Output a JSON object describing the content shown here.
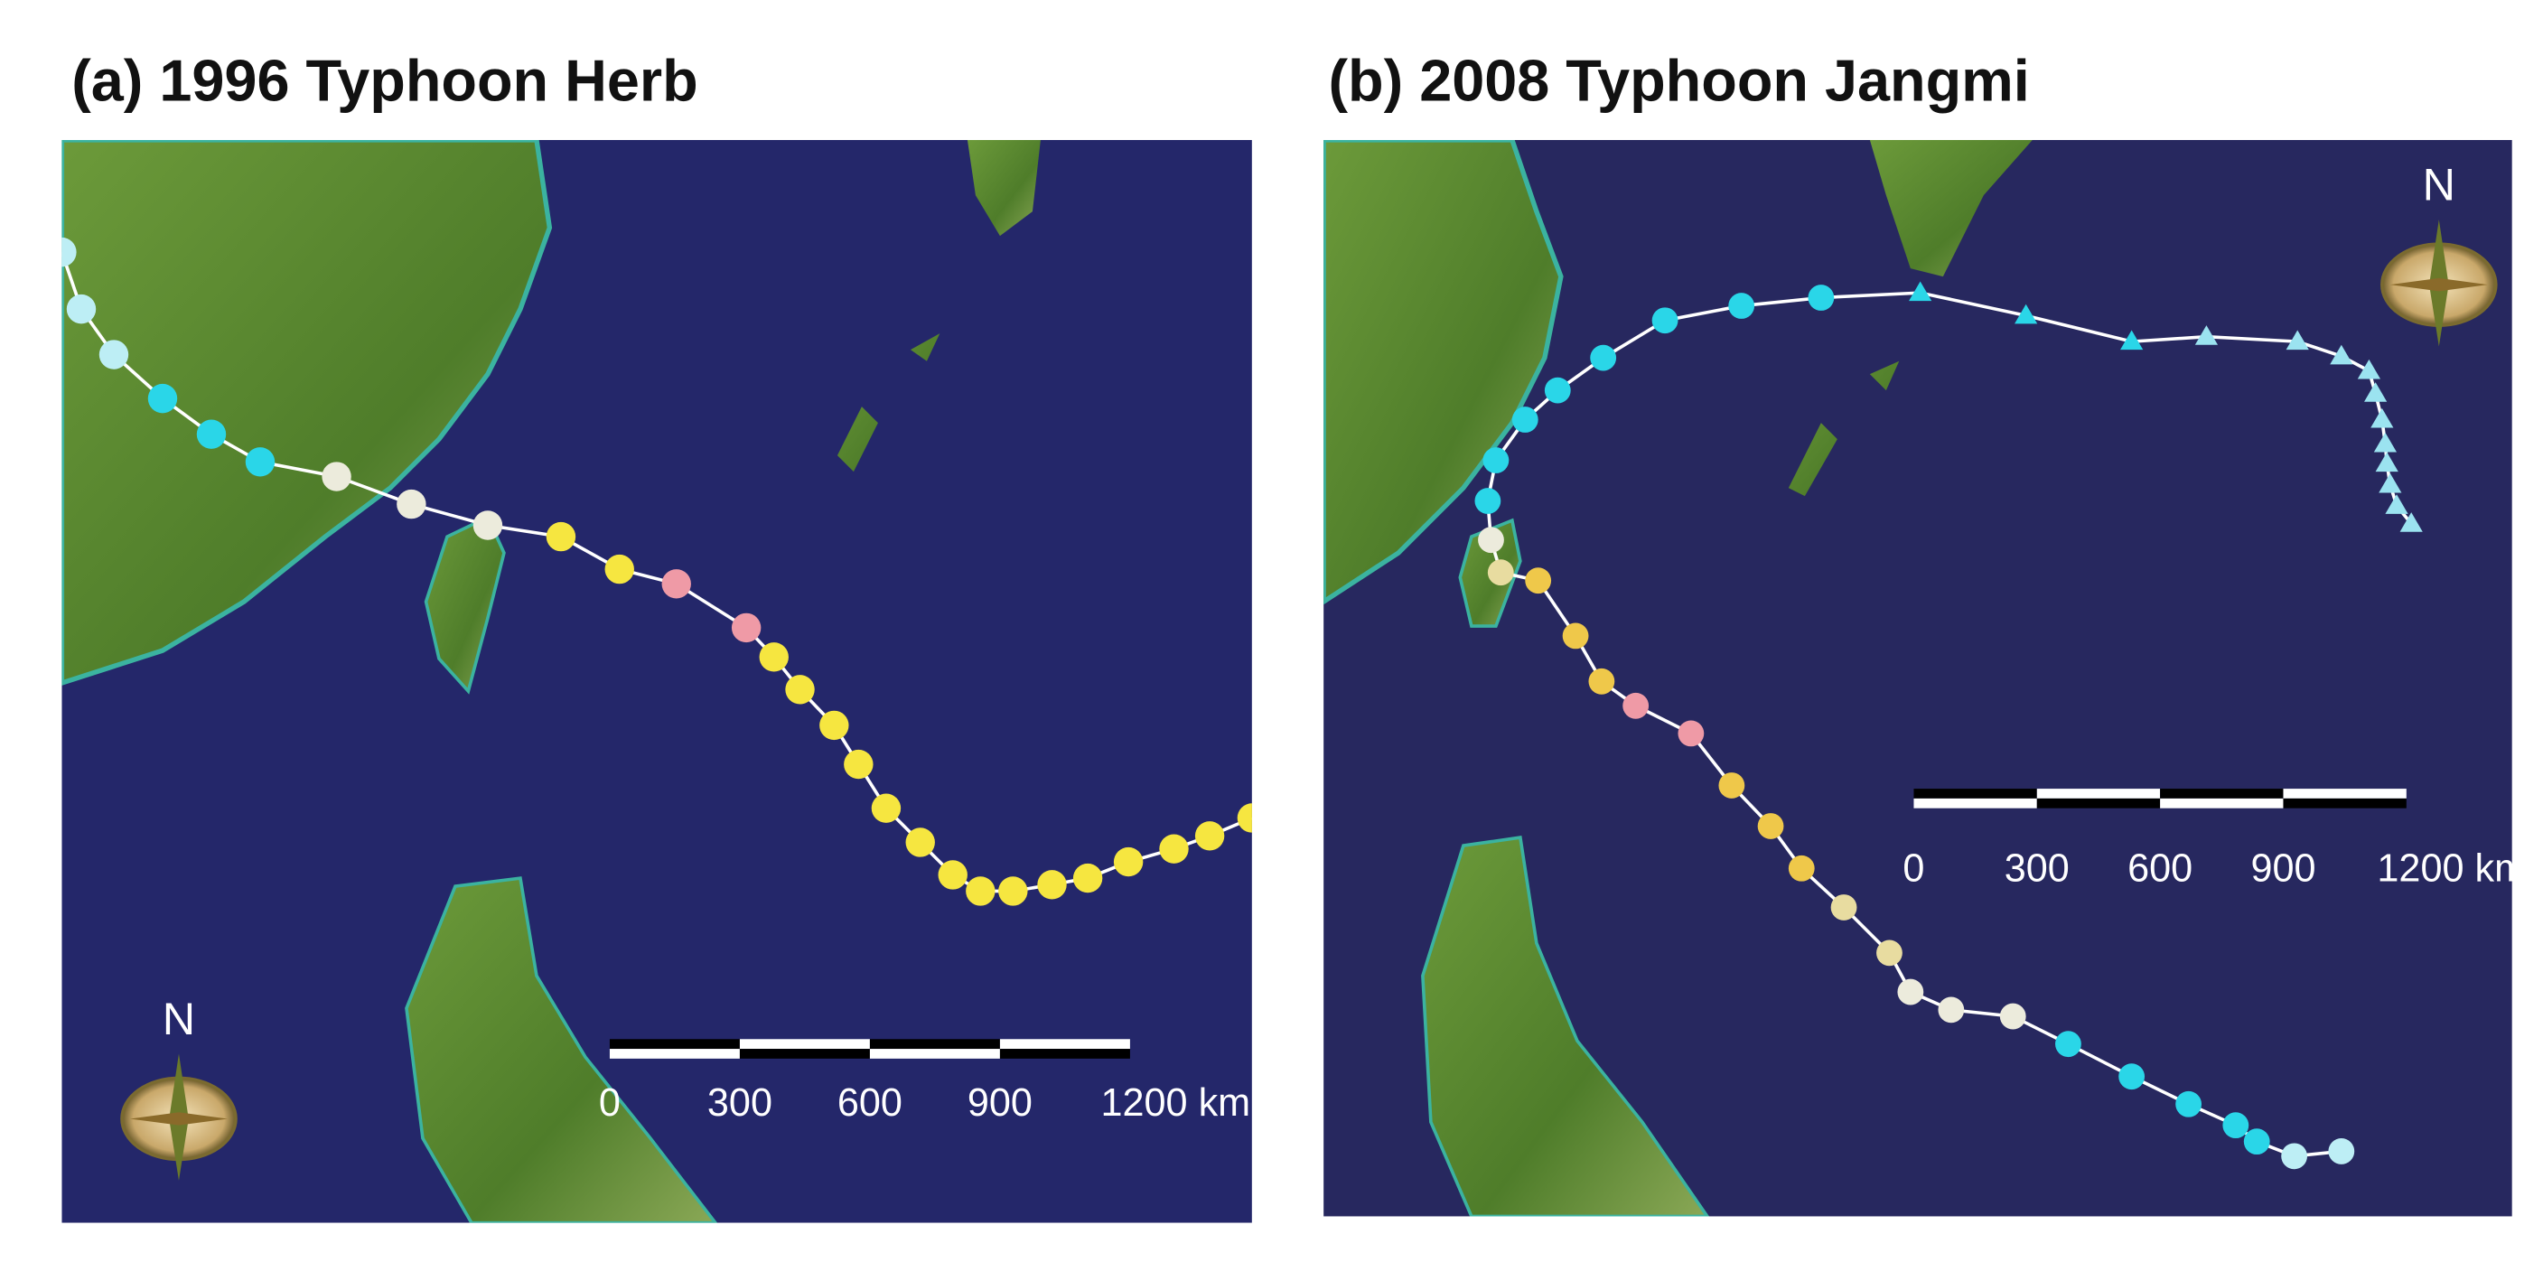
{
  "panels": [
    {
      "title": "(a) 1996 Typhoon Herb",
      "north": "N",
      "scale_labels": [
        "0",
        "300",
        "600",
        "900",
        "1200 km"
      ]
    },
    {
      "title": "(b) 2008 Typhoon Jangmi",
      "north": "N",
      "scale_labels": [
        "0",
        "300",
        "600",
        "900",
        "1200 km"
      ]
    }
  ]
}
